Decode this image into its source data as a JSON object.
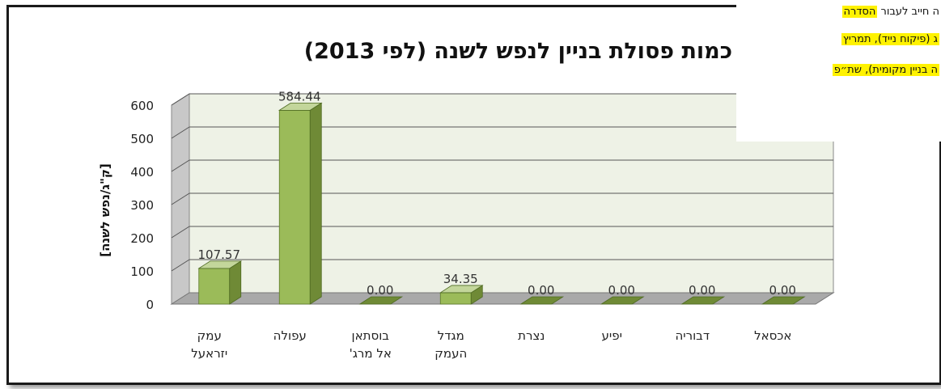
{
  "chart_data": {
    "type": "bar",
    "title": "כמות פסולת בניין לנפש לשנה (לפי 2013)",
    "xlabel": "",
    "ylabel": "[ק\"ג/נפש לשנה]",
    "ylim": [
      0,
      600
    ],
    "yticks": [
      0,
      100,
      200,
      300,
      400,
      500,
      600
    ],
    "categories": [
      [
        "עמק",
        "יזראעל"
      ],
      [
        "עפולה"
      ],
      [
        "בוסתאן",
        "אל מרג'"
      ],
      [
        "מגדל",
        "העמק"
      ],
      [
        "נצרת"
      ],
      [
        "יפיע"
      ],
      [
        "דבוריה"
      ],
      [
        "אכסאל"
      ]
    ],
    "values": [
      107.57,
      584.44,
      0.0,
      34.35,
      0.0,
      0.0,
      0.0,
      0.0
    ],
    "value_labels": [
      "107.57",
      "584.44",
      "0.00",
      "34.35",
      "0.00",
      "0.00",
      "0.00",
      "0.00"
    ],
    "grid": true,
    "legend": "none",
    "colors": {
      "bar_front": "#9bbb59",
      "bar_side": "#6f8a36",
      "bar_top": "#c3d69b",
      "wall": "#eef2e6",
      "floor": "#a9a9a9",
      "grid": "#555555"
    }
  },
  "overlay_text": {
    "line1_plain": "ה חייב לעבור ",
    "line1_highlight": "הסדרה",
    "line2_highlight": "ג (פיקוח נייד), תמריץ",
    "line3_highlight": "ה בניין מקומית), שת״פ"
  }
}
